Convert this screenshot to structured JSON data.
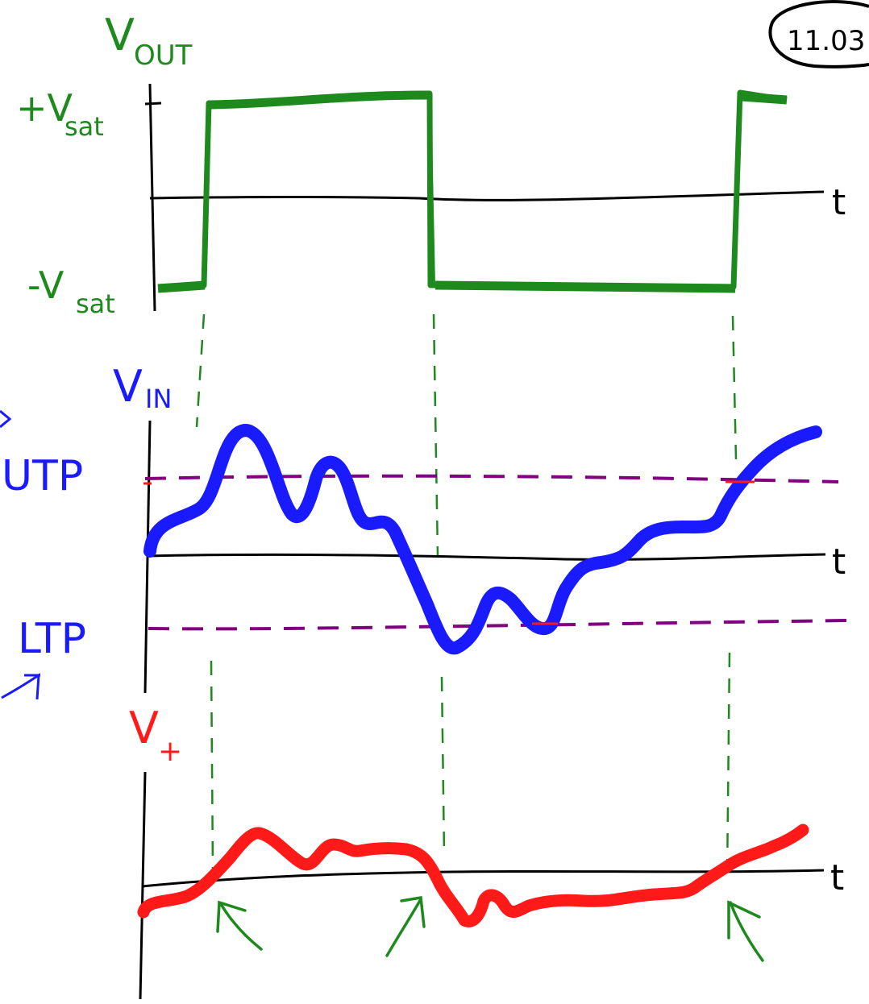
{
  "page_tag": "11.03",
  "panels": {
    "vout": {
      "axis_label_main": "V",
      "axis_label_sub": "OUT",
      "pos_sat_main": "+V",
      "pos_sat_sub": "sat",
      "neg_sat_main": "-V",
      "neg_sat_sub": "sat",
      "time_label": "t"
    },
    "vin": {
      "axis_label_main": "V",
      "axis_label_sub": "IN",
      "utp_label": "UTP",
      "ltp_label": "LTP",
      "time_label": "t"
    },
    "vplus": {
      "axis_label_main": "V",
      "axis_label_sub": "+",
      "time_label": "t"
    }
  },
  "colors": {
    "vout": "#1e8a1e",
    "vin": "#1a1aff",
    "vplus": "#ff1a1a",
    "threshold": "#800080",
    "axis": "#000000",
    "guide": "#1e8a1e"
  }
}
